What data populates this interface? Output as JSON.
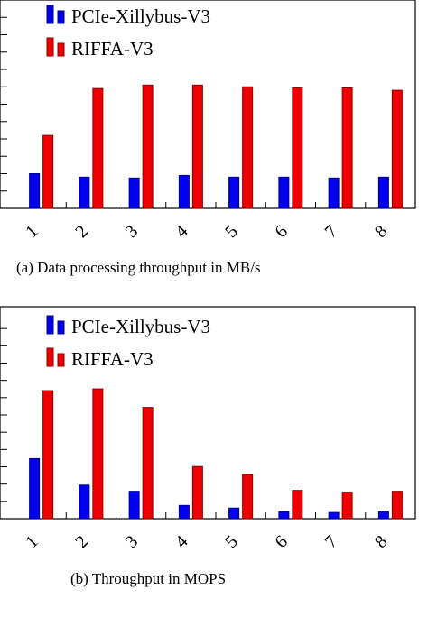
{
  "colors": {
    "series_1": "#0000ee",
    "series_1_dark": "#00008b",
    "series_2": "#ee0000",
    "series_2_dark": "#8b0000"
  },
  "chart_data": [
    {
      "type": "bar",
      "caption": "(a)  Data processing throughput in MB/s",
      "categories": [
        "1",
        "2",
        "3",
        "4",
        "5",
        "6",
        "7",
        "8"
      ],
      "series": [
        {
          "name": "PCIe-Xillybus-V3",
          "values": [
            2.0,
            1.8,
            1.75,
            1.9,
            1.8,
            1.8,
            1.75,
            1.8
          ]
        },
        {
          "name": "RIFFA-V3",
          "values": [
            4.2,
            6.9,
            7.1,
            7.1,
            7.0,
            6.95,
            6.95,
            6.8
          ]
        }
      ],
      "ylim": [
        0,
        12
      ],
      "legend": "top-left",
      "grid": false
    },
    {
      "type": "bar",
      "caption": "(b)  Throughput in MOPS",
      "categories": [
        "1",
        "2",
        "3",
        "4",
        "5",
        "6",
        "7",
        "8"
      ],
      "series": [
        {
          "name": "PCIe-Xillybus-V3",
          "values": [
            3.4,
            1.9,
            1.55,
            0.75,
            0.6,
            0.4,
            0.35,
            0.4
          ]
        },
        {
          "name": "RIFFA-V3",
          "values": [
            7.25,
            7.35,
            6.3,
            2.95,
            2.5,
            1.6,
            1.5,
            1.55
          ]
        }
      ],
      "ylim": [
        0,
        12
      ],
      "legend": "top-left",
      "grid": false
    }
  ]
}
